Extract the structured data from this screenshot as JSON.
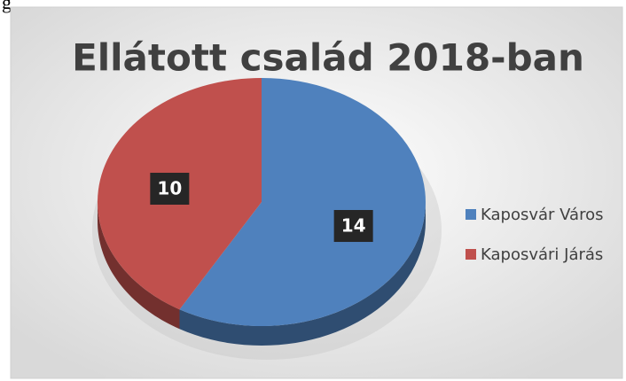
{
  "page_text": "g",
  "chart_data": {
    "type": "pie",
    "title": "Ellátott család 2018-ban",
    "categories": [
      "Kaposvár Város",
      "Kaposvári Járás"
    ],
    "values": [
      14,
      10
    ],
    "colors": [
      "#4f81bd",
      "#c0504d"
    ],
    "legend": "right"
  }
}
